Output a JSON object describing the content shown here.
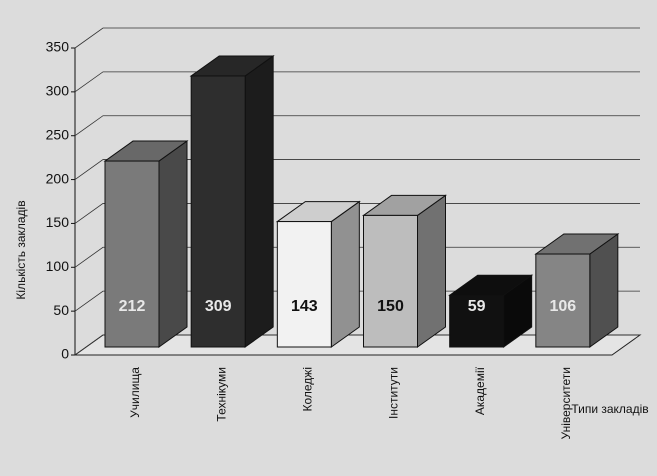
{
  "chart_data": {
    "type": "bar",
    "categories": [
      "Училища",
      "Технікуми",
      "Коледжі",
      "Інститути",
      "Академії",
      "Університети"
    ],
    "values": [
      212,
      309,
      143,
      150,
      59,
      106
    ],
    "colors": [
      "#7a7a7a",
      "#2e2e2e",
      "#f2f2f2",
      "#bdbdbd",
      "#111111",
      "#858585"
    ],
    "y_label": "Кількість закладів",
    "x_label": "Типи закладів",
    "ylim": [
      0,
      350
    ],
    "yticks": [
      0,
      50,
      100,
      150,
      200,
      250,
      300,
      350
    ],
    "grid": true
  }
}
